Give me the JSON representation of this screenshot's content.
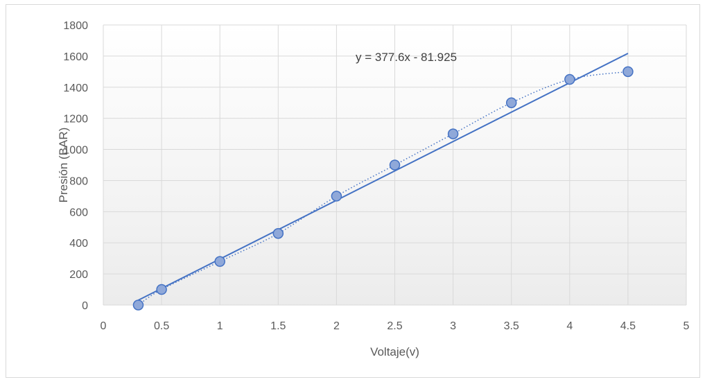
{
  "chart_data": {
    "type": "scatter",
    "xlabel": "Voltaje(v)",
    "ylabel": "Presión (BAR)",
    "xlim": [
      0,
      5
    ],
    "ylim": [
      0,
      1800
    ],
    "x_ticks": [
      "0",
      "0.5",
      "1",
      "1.5",
      "2",
      "2.5",
      "3",
      "3.5",
      "4",
      "4.5",
      "5"
    ],
    "y_ticks": [
      "0",
      "200",
      "400",
      "600",
      "800",
      "1000",
      "1200",
      "1400",
      "1600",
      "1800"
    ],
    "grid": true,
    "series": [
      {
        "x": [
          0.3,
          0.5,
          1,
          1.5,
          2,
          2.5,
          3,
          3.5,
          4,
          4.5
        ],
        "y": [
          0,
          100,
          280,
          460,
          700,
          900,
          1100,
          1300,
          1450,
          1500
        ]
      }
    ],
    "trendline": {
      "type": "linear",
      "slope": 377.6,
      "intercept": -81.925,
      "x_range": [
        0.3,
        4.5
      ]
    },
    "smooth_line": {
      "style": "dotted"
    },
    "annotation": "y = 377.6x - 81.925",
    "colors": {
      "marker_fill": "#8FA8D9",
      "marker_stroke": "#4472C4",
      "trendline": "#4472C4",
      "grid": "#d9d9d9",
      "plot_bg_top": "#ffffff",
      "plot_bg_bottom": "#ececec"
    }
  }
}
